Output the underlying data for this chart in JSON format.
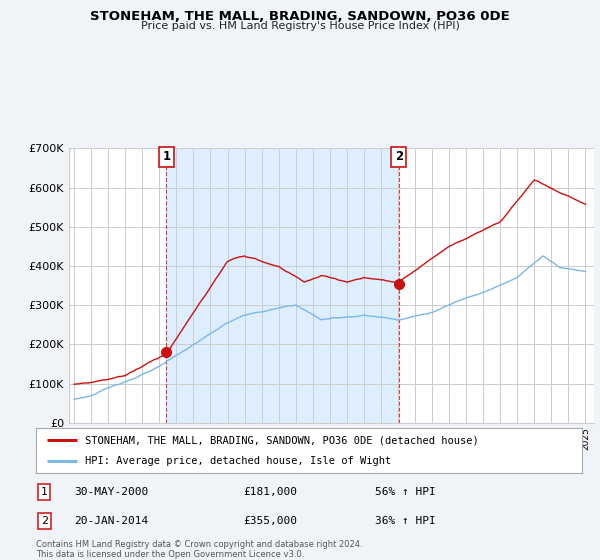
{
  "title": "STONEHAM, THE MALL, BRADING, SANDOWN, PO36 0DE",
  "subtitle": "Price paid vs. HM Land Registry's House Price Index (HPI)",
  "ylim": [
    0,
    700000
  ],
  "yticks": [
    0,
    100000,
    200000,
    300000,
    400000,
    500000,
    600000,
    700000
  ],
  "ytick_labels": [
    "£0",
    "£100K",
    "£200K",
    "£300K",
    "£400K",
    "£500K",
    "£600K",
    "£700K"
  ],
  "hpi_color": "#7ab8e8",
  "price_color": "#cc1111",
  "shade_color": "#ddeeff",
  "sale1_year": 2000.41,
  "sale1_price": 181000,
  "sale2_year": 2014.05,
  "sale2_price": 355000,
  "legend_line1": "STONEHAM, THE MALL, BRADING, SANDOWN, PO36 0DE (detached house)",
  "legend_line2": "HPI: Average price, detached house, Isle of Wight",
  "sale1_date": "30-MAY-2000",
  "sale1_amount": "£181,000",
  "sale1_pct": "56% ↑ HPI",
  "sale2_date": "20-JAN-2014",
  "sale2_amount": "£355,000",
  "sale2_pct": "36% ↑ HPI",
  "footnote": "Contains HM Land Registry data © Crown copyright and database right 2024.\nThis data is licensed under the Open Government Licence v3.0.",
  "bg_color": "#f0f4f8",
  "plot_bg_color": "#ffffff",
  "grid_color": "#cccccc"
}
